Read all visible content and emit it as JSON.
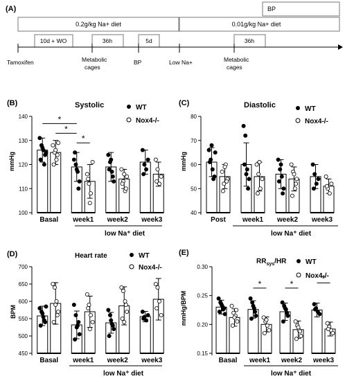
{
  "timeline": {
    "panel_label": "(A)",
    "bp_box": "BP",
    "diet_high": "0.2g/kg Na+ diet",
    "diet_low": "0.01g/kg Na+ diet",
    "box_wo": "10d + WO",
    "box_36h_1": "36h",
    "box_5d": "5d",
    "box_36h_2": "36h",
    "events": {
      "tamoxifen": "Tamoxifen",
      "metabolic1a": "Metabolic",
      "metabolic1b": "cages",
      "bp": "BP",
      "low_na": "Low Na+",
      "metabolic2a": "Metabolic",
      "metabolic2b": "cages"
    }
  },
  "legend": {
    "wt": "WT",
    "ko": "Nox4-/-"
  },
  "group_label": "low Na⁺ diet",
  "chart_data": [
    {
      "type": "bar",
      "panel_label": "(B)",
      "title": "Systolic",
      "ylabel": "mmHg",
      "ylim": [
        100,
        140
      ],
      "yticks": [
        100,
        110,
        120,
        130,
        140
      ],
      "categories": [
        "Basal",
        "week1",
        "week2",
        "week3"
      ],
      "series": [
        {
          "name": "WT",
          "values": [
            126,
            119,
            119,
            121
          ],
          "errors": [
            5,
            6,
            6,
            5
          ],
          "points": [
            [
              131,
              128,
              126,
              124,
              122,
              127,
              120,
              125
            ],
            [
              122,
              120,
              117,
              113,
              125,
              118,
              110
            ],
            [
              124,
              121,
              117,
              113,
              118,
              122,
              115
            ],
            [
              126,
              120,
              118,
              122,
              116
            ]
          ]
        },
        {
          "name": "Nox4-/-",
          "values": [
            125,
            113,
            114,
            116
          ],
          "errors": [
            5,
            7,
            4,
            5
          ],
          "points": [
            [
              128,
              125,
              122,
              129,
              120,
              126,
              124
            ],
            [
              116,
              112,
              108,
              121,
              114,
              104
            ],
            [
              118,
              113,
              109,
              115,
              112,
              116,
              110
            ],
            [
              122,
              118,
              112,
              115,
              113
            ]
          ]
        }
      ],
      "significance": [
        {
          "from": [
            0,
            0
          ],
          "to": [
            1,
            0
          ],
          "label": "*",
          "y": 137
        },
        {
          "from": [
            0,
            1
          ],
          "to": [
            1,
            0
          ],
          "label": "*",
          "y": 133
        },
        {
          "from": [
            1,
            0
          ],
          "to": [
            1,
            1
          ],
          "label": "*",
          "y": 129
        }
      ]
    },
    {
      "type": "bar",
      "panel_label": "(C)",
      "title": "Diastolic",
      "ylabel": "mmHg",
      "ylim": [
        40,
        80
      ],
      "yticks": [
        40,
        50,
        60,
        70,
        80
      ],
      "categories": [
        "Post",
        "week1",
        "week2",
        "week3"
      ],
      "series": [
        {
          "name": "WT",
          "values": [
            61,
            60,
            56,
            55
          ],
          "errors": [
            6,
            9,
            6,
            5
          ],
          "points": [
            [
              66,
              62,
              58,
              55,
              61,
              68,
              54,
              65
            ],
            [
              76,
              72,
              58,
              54,
              60,
              56,
              50
            ],
            [
              62,
              58,
              55,
              50,
              53,
              60,
              48
            ],
            [
              60,
              56,
              52,
              54,
              50
            ]
          ]
        },
        {
          "name": "Nox4-/-",
          "values": [
            55,
            55,
            54,
            51
          ],
          "errors": [
            5,
            6,
            5,
            3
          ],
          "points": [
            [
              57,
              52,
              60,
              54,
              49,
              59,
              53
            ],
            [
              60,
              56,
              50,
              54,
              48,
              61
            ],
            [
              60,
              57,
              50,
              54,
              47,
              56,
              52
            ],
            [
              55,
              50,
              48,
              52,
              51
            ]
          ]
        }
      ]
    },
    {
      "type": "bar",
      "panel_label": "(D)",
      "title": "Heart rate",
      "ylabel": "BPM",
      "ylim": [
        450,
        700
      ],
      "yticks": [
        450,
        500,
        550,
        600,
        650,
        700
      ],
      "categories": [
        "Basal",
        "week1",
        "week2",
        "week3"
      ],
      "series": [
        {
          "name": "WT",
          "values": [
            558,
            532,
            538,
            556
          ],
          "errors": [
            28,
            40,
            30,
            15
          ],
          "points": [
            [
              580,
              570,
              555,
              540,
              530,
              565,
              545,
              585
            ],
            [
              590,
              560,
              530,
              505,
              490,
              525,
              540
            ],
            [
              575,
              560,
              535,
              520,
              500,
              545,
              530
            ],
            [
              570,
              555,
              545,
              560,
              550
            ]
          ]
        },
        {
          "name": "Nox4-/-",
          "values": [
            594,
            570,
            587,
            606
          ],
          "errors": [
            60,
            45,
            55,
            60
          ],
          "points": [
            [
              650,
              640,
              600,
              570,
              540,
              590,
              560
            ],
            [
              620,
              590,
              560,
              540,
              580,
              520
            ],
            [
              640,
              630,
              600,
              570,
              550,
              540,
              590
            ],
            [
              650,
              640,
              600,
              560,
              580
            ]
          ]
        }
      ]
    },
    {
      "type": "bar",
      "panel_label": "(E)",
      "title": "RR",
      "title_sub": "sys",
      "title_tail": "/HR",
      "ylabel": "mmHg/BPM",
      "ylim": [
        0.15,
        0.3
      ],
      "yticks": [
        0.15,
        0.2,
        0.25,
        0.3
      ],
      "categories": [
        "Basal",
        "week1",
        "week2",
        "week3"
      ],
      "series": [
        {
          "name": "WT",
          "values": [
            0.23,
            0.226,
            0.222,
            0.225
          ],
          "errors": [
            0.012,
            0.015,
            0.015,
            0.012
          ],
          "points": [
            [
              0.245,
              0.238,
              0.232,
              0.228,
              0.222,
              0.235,
              0.226,
              0.218
            ],
            [
              0.245,
              0.238,
              0.228,
              0.215,
              0.21,
              0.232,
              0.222
            ],
            [
              0.238,
              0.232,
              0.226,
              0.215,
              0.205,
              0.228,
              0.22
            ],
            [
              0.235,
              0.228,
              0.222,
              0.218,
              0.226
            ]
          ]
        },
        {
          "name": "Nox4-/-",
          "values": [
            0.212,
            0.2,
            0.191,
            0.192
          ],
          "errors": [
            0.015,
            0.013,
            0.015,
            0.012
          ],
          "points": [
            [
              0.232,
              0.22,
              0.215,
              0.205,
              0.198,
              0.212,
              0.225
            ],
            [
              0.212,
              0.205,
              0.198,
              0.19,
              0.185,
              0.208
            ],
            [
              0.205,
              0.198,
              0.19,
              0.18,
              0.175,
              0.195,
              0.188
            ],
            [
              0.202,
              0.196,
              0.19,
              0.185,
              0.192
            ]
          ]
        }
      ],
      "significance": [
        {
          "from": [
            1,
            0
          ],
          "to": [
            1,
            1
          ],
          "label": "*",
          "y": 0.263
        },
        {
          "from": [
            2,
            0
          ],
          "to": [
            2,
            1
          ],
          "label": "*",
          "y": 0.263
        },
        {
          "from": [
            3,
            0
          ],
          "to": [
            3,
            1
          ],
          "label": "*",
          "y": 0.272
        }
      ]
    }
  ]
}
